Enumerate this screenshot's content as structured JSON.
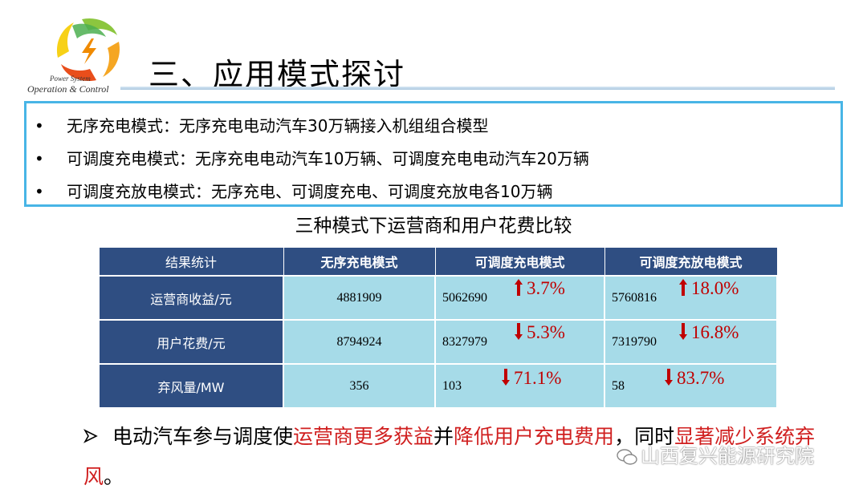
{
  "header": {
    "logo_line1": "Power System",
    "logo_line2": "Operation & Control",
    "title": "三、应用模式探讨"
  },
  "modes": [
    "无序充电模式：无序充电电动汽车30万辆接入机组组合模型",
    "可调度充电模式：无序充电电动汽车10万辆、可调度充电电动汽车20万辆",
    "可调度充放电模式：无序充电、可调度充电、可调度充放电各10万辆"
  ],
  "table": {
    "caption": "三种模式下运营商和用户花费比较",
    "headers": [
      "结果统计",
      "无序充电模式",
      "可调度充电模式",
      "可调度充放电模式"
    ],
    "rows": [
      {
        "label": "运营商收益/元",
        "c1": "4881909",
        "c2": "5062690",
        "c2_pct": "3.7%",
        "c2_dir": "up",
        "c3": "5760816",
        "c3_pct": "18.0%",
        "c3_dir": "up"
      },
      {
        "label": "用户花费/元",
        "c1": "8794924",
        "c2": "8327979",
        "c2_pct": "5.3%",
        "c2_dir": "down",
        "c3": "7319790",
        "c3_pct": "16.8%",
        "c3_dir": "down"
      },
      {
        "label": "弃风量/MW",
        "c1": "356",
        "c2": "103",
        "c2_pct": "71.1%",
        "c2_dir": "down",
        "c3": "58",
        "c3_pct": "83.7%",
        "c3_dir": "down"
      }
    ]
  },
  "conclusion": {
    "p1": "电动汽车参与调度使",
    "p2": "运营商更多获益",
    "p3": "并",
    "p4": "降低用户充电费用",
    "p5": "，同时",
    "p6": "显著减少系统弃风",
    "p7": "。"
  },
  "watermark": "山西复兴能源研究院",
  "colors": {
    "accent_red": "#c00000",
    "header_blue": "#2f4e82",
    "cell_cyan": "#a6dbe8",
    "box_border": "#48b5e6"
  }
}
